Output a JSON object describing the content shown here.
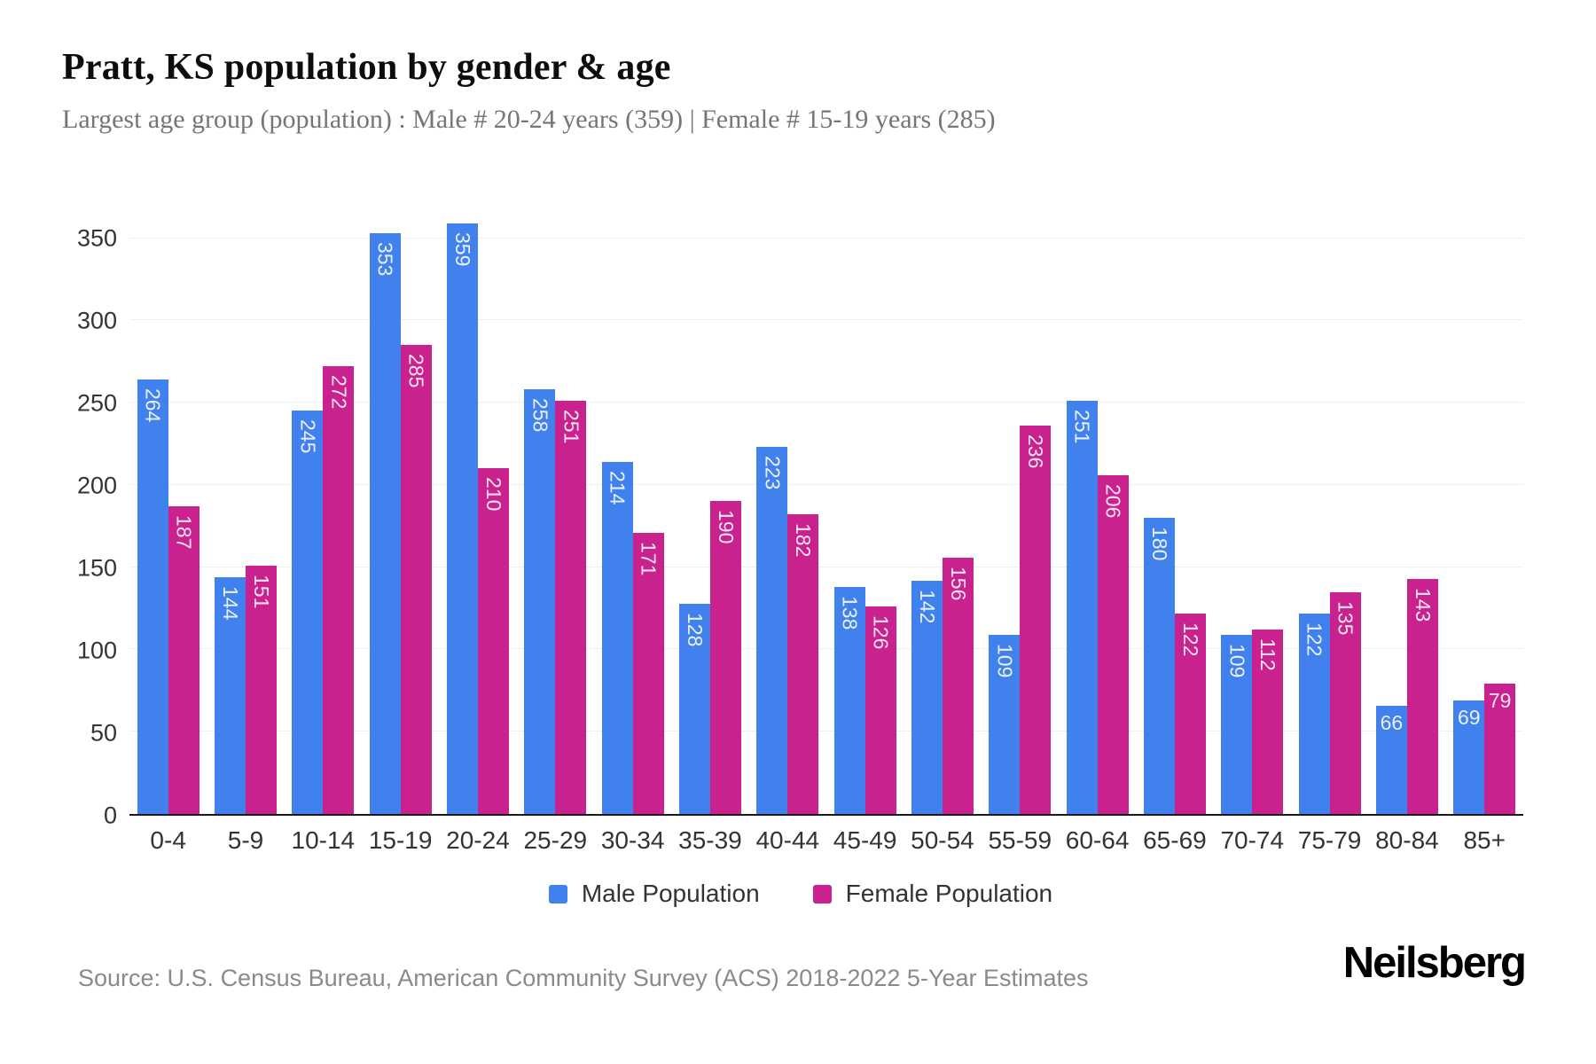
{
  "header": {
    "title": "Pratt, KS population by gender & age",
    "subtitle": "Largest age group (population) : Male # 20-24 years (359) | Female # 15-19 years (285)"
  },
  "chart_data": {
    "type": "bar",
    "title": "Pratt, KS population by gender & age",
    "categories": [
      "0-4",
      "5-9",
      "10-14",
      "15-19",
      "20-24",
      "25-29",
      "30-34",
      "35-39",
      "40-44",
      "45-49",
      "50-54",
      "55-59",
      "60-64",
      "65-69",
      "70-74",
      "75-79",
      "80-84",
      "85+"
    ],
    "series": [
      {
        "name": "Male Population",
        "color": "#4181ee",
        "values": [
          264,
          144,
          245,
          353,
          359,
          258,
          214,
          128,
          223,
          138,
          142,
          109,
          251,
          180,
          109,
          122,
          66,
          69
        ]
      },
      {
        "name": "Female Population",
        "color": "#c9218e",
        "values": [
          187,
          151,
          272,
          285,
          210,
          251,
          171,
          190,
          182,
          126,
          156,
          236,
          206,
          122,
          112,
          135,
          143,
          79
        ]
      }
    ],
    "xlabel": "",
    "ylabel": "",
    "ylim": [
      0,
      360
    ],
    "yticks": [
      0,
      50,
      100,
      150,
      200,
      250,
      300,
      350
    ],
    "grid": true,
    "legend_position": "bottom",
    "bar_label_color": "rgba(255,255,255,0.88)",
    "rotate_label_min_value": 100
  },
  "footer": {
    "source": "Source: U.S. Census Bureau, American Community Survey (ACS) 2018-2022 5-Year Estimates",
    "logo": "Neilsberg"
  }
}
